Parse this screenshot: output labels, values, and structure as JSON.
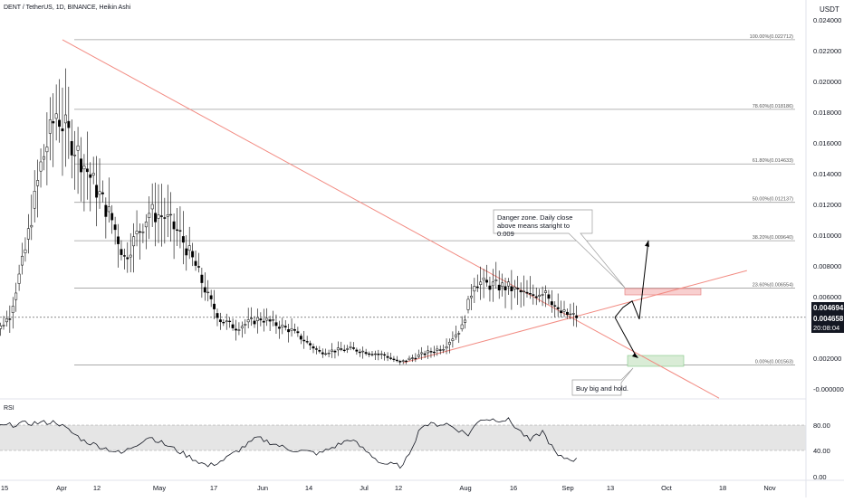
{
  "header": {
    "title": "DENT / TetherUS, 1D, BINANCE, Heikin Ashi",
    "unit": "USDT"
  },
  "rsi_panel": {
    "label": "RSI",
    "ticks": [
      "80.00",
      "40.00",
      "0.00"
    ]
  },
  "price_axis": {
    "ticks": [
      "0.024000",
      "0.022000",
      "0.020000",
      "0.018000",
      "0.016000",
      "0.014000",
      "0.012000",
      "0.010000",
      "0.008000",
      "0.006000",
      "0.002000",
      "-0.000000"
    ],
    "last_price": "0.004694",
    "close_price": "0.004658",
    "countdown": "20:08:04"
  },
  "time_axis": {
    "ticks": [
      "15",
      "Apr",
      "12",
      "May",
      "17",
      "Jun",
      "14",
      "Jul",
      "12",
      "Aug",
      "16",
      "Sep",
      "13",
      "Oct",
      "18",
      "Nov"
    ]
  },
  "fib_levels": [
    {
      "label": "100.00%(0.022712)",
      "value": 0.022712
    },
    {
      "label": "78.60%(0.018186)",
      "value": 0.018186
    },
    {
      "label": "61.80%(0.014633)",
      "value": 0.014633
    },
    {
      "label": "50.00%(0.012137)",
      "value": 0.012137
    },
    {
      "label": "38.20%(0.009640)",
      "value": 0.00964
    },
    {
      "label": "23.60%(0.006554)",
      "value": 0.006554
    },
    {
      "label": "0.00%(0.001563)",
      "value": 0.001563
    }
  ],
  "annotations": {
    "danger": "Danger zone. Daily close above means staright to 0.009",
    "buy": "Buy big and hold."
  },
  "colors": {
    "background": "#ffffff",
    "candle": "#000000",
    "trendline": "#f28b82",
    "fib_line": "#9e9e9e",
    "danger_zone": "#f8cfcf",
    "buy_zone": "#d9ecd6",
    "rsi_band": "#e5e5e5",
    "last_price_tag": "#131722"
  },
  "chart_data": {
    "type": "candlestick",
    "symbol": "DENT / TetherUS",
    "interval": "1D",
    "x_unit": "date (2021)",
    "ylim": [
      -0.001,
      0.025
    ],
    "keyframes": [
      {
        "date": "2021-03-10",
        "close": 0.003
      },
      {
        "date": "2021-03-17",
        "close": 0.0048
      },
      {
        "date": "2021-03-22",
        "close": 0.009
      },
      {
        "date": "2021-03-27",
        "close": 0.0145
      },
      {
        "date": "2021-04-01",
        "close": 0.018
      },
      {
        "date": "2021-04-05",
        "close": 0.0165
      },
      {
        "date": "2021-04-09",
        "close": 0.015
      },
      {
        "date": "2021-04-14",
        "close": 0.013
      },
      {
        "date": "2021-04-19",
        "close": 0.011
      },
      {
        "date": "2021-04-23",
        "close": 0.0085
      },
      {
        "date": "2021-04-27",
        "close": 0.01
      },
      {
        "date": "2021-05-01",
        "close": 0.0115
      },
      {
        "date": "2021-05-06",
        "close": 0.0112
      },
      {
        "date": "2021-05-11",
        "close": 0.01
      },
      {
        "date": "2021-05-16",
        "close": 0.008
      },
      {
        "date": "2021-05-20",
        "close": 0.006
      },
      {
        "date": "2021-05-24",
        "close": 0.0045
      },
      {
        "date": "2021-05-29",
        "close": 0.004
      },
      {
        "date": "2021-06-06",
        "close": 0.0046
      },
      {
        "date": "2021-06-16",
        "close": 0.0038
      },
      {
        "date": "2021-06-25",
        "close": 0.0024
      },
      {
        "date": "2021-07-05",
        "close": 0.0026
      },
      {
        "date": "2021-07-16",
        "close": 0.0022
      },
      {
        "date": "2021-07-21",
        "close": 0.0017
      },
      {
        "date": "2021-07-26",
        "close": 0.0021
      },
      {
        "date": "2021-08-04",
        "close": 0.0027
      },
      {
        "date": "2021-08-10",
        "close": 0.004
      },
      {
        "date": "2021-08-14",
        "close": 0.007
      },
      {
        "date": "2021-08-18",
        "close": 0.0068
      },
      {
        "date": "2021-08-25",
        "close": 0.0066
      },
      {
        "date": "2021-09-01",
        "close": 0.006
      },
      {
        "date": "2021-09-06",
        "close": 0.0065
      },
      {
        "date": "2021-09-10",
        "close": 0.005
      },
      {
        "date": "2021-09-16",
        "close": 0.0047
      }
    ],
    "fibonacci": [
      {
        "ratio": 1.0,
        "price": 0.022712
      },
      {
        "ratio": 0.786,
        "price": 0.018186
      },
      {
        "ratio": 0.618,
        "price": 0.014633
      },
      {
        "ratio": 0.5,
        "price": 0.012137
      },
      {
        "ratio": 0.382,
        "price": 0.00964
      },
      {
        "ratio": 0.236,
        "price": 0.006554
      },
      {
        "ratio": 0.0,
        "price": 0.001563
      }
    ],
    "last_price": 0.004694,
    "close_price": 0.004658,
    "rsi": {
      "band": [
        40,
        80
      ],
      "keyframes": [
        {
          "date": "2021-03-10",
          "value": 75
        },
        {
          "date": "2021-03-20",
          "value": 82
        },
        {
          "date": "2021-04-01",
          "value": 85
        },
        {
          "date": "2021-04-10",
          "value": 55
        },
        {
          "date": "2021-04-22",
          "value": 35
        },
        {
          "date": "2021-05-01",
          "value": 62
        },
        {
          "date": "2021-05-10",
          "value": 40
        },
        {
          "date": "2021-05-20",
          "value": 15
        },
        {
          "date": "2021-05-25",
          "value": 25
        },
        {
          "date": "2021-06-05",
          "value": 60
        },
        {
          "date": "2021-06-15",
          "value": 42
        },
        {
          "date": "2021-06-25",
          "value": 35
        },
        {
          "date": "2021-07-05",
          "value": 58
        },
        {
          "date": "2021-07-15",
          "value": 20
        },
        {
          "date": "2021-07-22",
          "value": 15
        },
        {
          "date": "2021-07-28",
          "value": 80
        },
        {
          "date": "2021-08-05",
          "value": 82
        },
        {
          "date": "2021-08-12",
          "value": 65
        },
        {
          "date": "2021-08-16",
          "value": 90
        },
        {
          "date": "2021-08-25",
          "value": 88
        },
        {
          "date": "2021-09-01",
          "value": 55
        },
        {
          "date": "2021-09-05",
          "value": 70
        },
        {
          "date": "2021-09-10",
          "value": 30
        },
        {
          "date": "2021-09-16",
          "value": 25
        }
      ]
    },
    "trendlines": [
      {
        "name": "descending",
        "from": {
          "date": "2021-04-03",
          "price": 0.022712
        },
        "to": {
          "date": "2021-11-01",
          "price": -0.0006
        }
      },
      {
        "name": "ascending",
        "from": {
          "date": "2021-07-22",
          "price": 0.0017
        },
        "to": {
          "date": "2021-11-10",
          "price": 0.0077
        }
      }
    ]
  }
}
